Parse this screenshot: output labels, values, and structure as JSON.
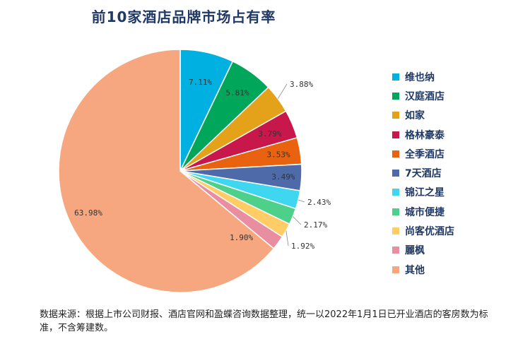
{
  "chart_data": {
    "type": "pie",
    "title": "前10家酒店品牌市场占有率",
    "slices": [
      {
        "name": "维也纳",
        "value": 7.11,
        "label": "7.11%",
        "color": "#00b0e0"
      },
      {
        "name": "汉庭酒店",
        "value": 5.81,
        "label": "5.81%",
        "color": "#00a65a"
      },
      {
        "name": "如家",
        "value": 3.88,
        "label": "3.88%",
        "color": "#e3a21a"
      },
      {
        "name": "格林豪泰",
        "value": 3.79,
        "label": "3.79%",
        "color": "#c8174a"
      },
      {
        "name": "全季酒店",
        "value": 3.53,
        "label": "3.53%",
        "color": "#e8620f"
      },
      {
        "name": "7天酒店",
        "value": 3.49,
        "label": "3.49%",
        "color": "#4e6aa8"
      },
      {
        "name": "锦江之星",
        "value": 2.43,
        "label": "2.43%",
        "color": "#3fd6f0"
      },
      {
        "name": "城市便捷",
        "value": 2.17,
        "label": "2.17%",
        "color": "#4dd08a"
      },
      {
        "name": "尚客优酒店",
        "value": 1.92,
        "label": "1.92%",
        "color": "#ffcc66"
      },
      {
        "name": "麗枫",
        "value": 1.9,
        "label": "1.90%",
        "color": "#e98ea0"
      },
      {
        "name": "其他",
        "value": 63.98,
        "label": "63.98%",
        "color": "#f6a77f"
      }
    ],
    "legend_position": "right"
  },
  "source_note": "数据来源：根据上市公司财报、酒店官网和盈蝶咨询数据整理，统一以2022年1月1日已开业酒店的客房数为标准，不含筹建数。"
}
